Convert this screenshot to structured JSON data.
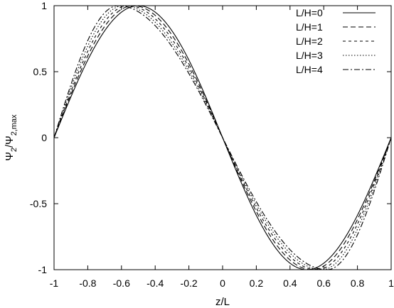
{
  "chart_data": {
    "type": "line",
    "title": "",
    "xlabel": "z/L",
    "ylabel_parts": [
      "Ψ",
      "2",
      "/Ψ",
      "2,max"
    ],
    "xlim": [
      -1,
      1
    ],
    "ylim": [
      -1,
      1
    ],
    "xticks": [
      -1,
      -0.8,
      -0.6,
      -0.4,
      -0.2,
      0,
      0.2,
      0.4,
      0.6,
      0.8,
      1
    ],
    "xtick_labels": [
      "-1",
      "-0.8",
      "-0.6",
      "-0.4",
      "-0.2",
      "0",
      "0.2",
      "0.4",
      "0.6",
      "0.8",
      "1"
    ],
    "yticks": [
      -1,
      -0.5,
      0,
      0.5,
      1
    ],
    "ytick_labels": [
      "-1",
      "-0.5",
      "0",
      "0.5",
      "1"
    ],
    "grid": false,
    "legend_position": "top-right",
    "series": [
      {
        "name": "L/H=0",
        "dash": "solid",
        "peak_at": -0.5
      },
      {
        "name": "L/H=1",
        "dash": "dashed",
        "peak_at": -0.53
      },
      {
        "name": "L/H=2",
        "dash": "dotted-dashed-short",
        "peak_at": -0.56
      },
      {
        "name": "L/H=3",
        "dash": "dotted",
        "peak_at": -0.59
      },
      {
        "name": "L/H=4",
        "dash": "dash-dot",
        "peak_at": -0.62
      }
    ]
  }
}
